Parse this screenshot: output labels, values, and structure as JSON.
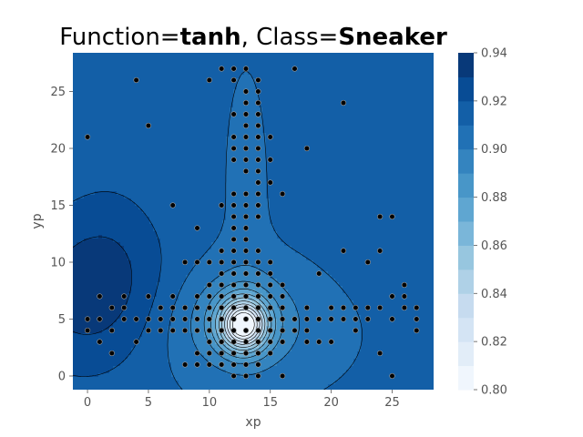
{
  "chart_data": {
    "type": "contour",
    "title_parts": [
      {
        "text": "Function=",
        "bold": false
      },
      {
        "text": "tanh",
        "bold": true
      },
      {
        "text": ", Class=",
        "bold": false
      },
      {
        "text": "Sneaker",
        "bold": true
      }
    ],
    "xlabel": "xp",
    "ylabel": "yp",
    "xlim": [
      -1.2,
      28.4
    ],
    "ylim": [
      28.4,
      -1.2
    ],
    "xticks": [
      0,
      5,
      10,
      15,
      20,
      25
    ],
    "yticks": [
      0,
      5,
      10,
      15,
      20,
      25
    ],
    "colorbar": {
      "cmap": "Blues",
      "range": [
        0.8,
        0.94
      ],
      "ticks": [
        "0.80",
        "0.82",
        "0.84",
        "0.86",
        "0.88",
        "0.90",
        "0.92",
        "0.94"
      ],
      "levels": 14
    },
    "colors": {
      "background_value_color": "#1764ab",
      "contour_line": "#000000",
      "point_fill": "#000000",
      "point_edge": "#9a9a9a"
    },
    "field": {
      "base": 0.912,
      "components": [
        {
          "type": "dip",
          "x": 12.8,
          "y": 4.5,
          "sx": 1.3,
          "sy": 1.5,
          "amp": -0.095
        },
        {
          "type": "dip",
          "x": 12.5,
          "y": 5.5,
          "sx": 3.2,
          "sy": 3.0,
          "amp": -0.018
        },
        {
          "type": "dip",
          "x": 12.5,
          "y": 3.5,
          "sx": 5.5,
          "sy": 3.5,
          "amp": -0.01
        },
        {
          "type": "dip",
          "x": 13.0,
          "y": 15.0,
          "sx": 1.5,
          "sy": 10.0,
          "amp": -0.004
        },
        {
          "type": "bump",
          "x": 0.0,
          "y": 7.0,
          "sx": 4.5,
          "sy": 5.0,
          "amp": 0.022
        },
        {
          "type": "bump",
          "x": 2.0,
          "y": 12.0,
          "sx": 3.0,
          "sy": 5.0,
          "amp": 0.006
        }
      ]
    },
    "points": [
      [
        0,
        21
      ],
      [
        0,
        4
      ],
      [
        0,
        5
      ],
      [
        1,
        3
      ],
      [
        1,
        5
      ],
      [
        1,
        7
      ],
      [
        2,
        2
      ],
      [
        2,
        4
      ],
      [
        2,
        6
      ],
      [
        3,
        5
      ],
      [
        3,
        6
      ],
      [
        3,
        7
      ],
      [
        4,
        3
      ],
      [
        4,
        5
      ],
      [
        4,
        26
      ],
      [
        5,
        4
      ],
      [
        5,
        5
      ],
      [
        5,
        7
      ],
      [
        5,
        22
      ],
      [
        6,
        4
      ],
      [
        6,
        5
      ],
      [
        6,
        6
      ],
      [
        7,
        4
      ],
      [
        7,
        5
      ],
      [
        7,
        6
      ],
      [
        7,
        7
      ],
      [
        7,
        15
      ],
      [
        8,
        1
      ],
      [
        8,
        4
      ],
      [
        8,
        5
      ],
      [
        8,
        6
      ],
      [
        8,
        10
      ],
      [
        9,
        1
      ],
      [
        9,
        2
      ],
      [
        9,
        4
      ],
      [
        9,
        5
      ],
      [
        9,
        6
      ],
      [
        9,
        7
      ],
      [
        9,
        10
      ],
      [
        9,
        13
      ],
      [
        10,
        1
      ],
      [
        10,
        2
      ],
      [
        10,
        3
      ],
      [
        10,
        4
      ],
      [
        10,
        5
      ],
      [
        10,
        6
      ],
      [
        10,
        7
      ],
      [
        10,
        8
      ],
      [
        10,
        10
      ],
      [
        10,
        26
      ],
      [
        11,
        1
      ],
      [
        11,
        2
      ],
      [
        11,
        3
      ],
      [
        11,
        4
      ],
      [
        11,
        5
      ],
      [
        11,
        6
      ],
      [
        11,
        7
      ],
      [
        11,
        8
      ],
      [
        11,
        9
      ],
      [
        11,
        10
      ],
      [
        11,
        11
      ],
      [
        11,
        15
      ],
      [
        11,
        27
      ],
      [
        12,
        0
      ],
      [
        12,
        1
      ],
      [
        12,
        2
      ],
      [
        12,
        3
      ],
      [
        12,
        4
      ],
      [
        12,
        5
      ],
      [
        12,
        6
      ],
      [
        12,
        7
      ],
      [
        12,
        8
      ],
      [
        12,
        9
      ],
      [
        12,
        10
      ],
      [
        12,
        11
      ],
      [
        12,
        12
      ],
      [
        12,
        13
      ],
      [
        12,
        14
      ],
      [
        12,
        15
      ],
      [
        12,
        16
      ],
      [
        12,
        19
      ],
      [
        12,
        20
      ],
      [
        12,
        21
      ],
      [
        12,
        23
      ],
      [
        12,
        26
      ],
      [
        12,
        27
      ],
      [
        13,
        0
      ],
      [
        13,
        1
      ],
      [
        13,
        2
      ],
      [
        13,
        3
      ],
      [
        13,
        4
      ],
      [
        13,
        5
      ],
      [
        13,
        6
      ],
      [
        13,
        7
      ],
      [
        13,
        8
      ],
      [
        13,
        9
      ],
      [
        13,
        10
      ],
      [
        13,
        11
      ],
      [
        13,
        12
      ],
      [
        13,
        13
      ],
      [
        13,
        14
      ],
      [
        13,
        15
      ],
      [
        13,
        16
      ],
      [
        13,
        18
      ],
      [
        13,
        19
      ],
      [
        13,
        20
      ],
      [
        13,
        21
      ],
      [
        13,
        22
      ],
      [
        13,
        23
      ],
      [
        13,
        24
      ],
      [
        13,
        25
      ],
      [
        13,
        27
      ],
      [
        14,
        0
      ],
      [
        14,
        1
      ],
      [
        14,
        2
      ],
      [
        14,
        3
      ],
      [
        14,
        4
      ],
      [
        14,
        5
      ],
      [
        14,
        6
      ],
      [
        14,
        7
      ],
      [
        14,
        8
      ],
      [
        14,
        9
      ],
      [
        14,
        10
      ],
      [
        14,
        11
      ],
      [
        14,
        14
      ],
      [
        14,
        15
      ],
      [
        14,
        16
      ],
      [
        14,
        17
      ],
      [
        14,
        18
      ],
      [
        14,
        19
      ],
      [
        14,
        20
      ],
      [
        14,
        21
      ],
      [
        14,
        22
      ],
      [
        14,
        23
      ],
      [
        14,
        24
      ],
      [
        14,
        25
      ],
      [
        14,
        26
      ],
      [
        15,
        2
      ],
      [
        15,
        3
      ],
      [
        15,
        4
      ],
      [
        15,
        5
      ],
      [
        15,
        6
      ],
      [
        15,
        7
      ],
      [
        15,
        8
      ],
      [
        15,
        9
      ],
      [
        15,
        10
      ],
      [
        15,
        17
      ],
      [
        15,
        19
      ],
      [
        15,
        21
      ],
      [
        16,
        0
      ],
      [
        16,
        3
      ],
      [
        16,
        4
      ],
      [
        16,
        5
      ],
      [
        16,
        6
      ],
      [
        16,
        7
      ],
      [
        16,
        8
      ],
      [
        16,
        16
      ],
      [
        17,
        4
      ],
      [
        17,
        5
      ],
      [
        17,
        27
      ],
      [
        18,
        3
      ],
      [
        18,
        4
      ],
      [
        18,
        5
      ],
      [
        18,
        6
      ],
      [
        18,
        20
      ],
      [
        19,
        3
      ],
      [
        19,
        5
      ],
      [
        19,
        9
      ],
      [
        20,
        3
      ],
      [
        20,
        5
      ],
      [
        20,
        6
      ],
      [
        21,
        5
      ],
      [
        21,
        6
      ],
      [
        21,
        11
      ],
      [
        21,
        24
      ],
      [
        22,
        4
      ],
      [
        22,
        5
      ],
      [
        22,
        6
      ],
      [
        23,
        5
      ],
      [
        23,
        6
      ],
      [
        23,
        10
      ],
      [
        24,
        2
      ],
      [
        24,
        6
      ],
      [
        24,
        11
      ],
      [
        24,
        14
      ],
      [
        25,
        0
      ],
      [
        25,
        5
      ],
      [
        25,
        7
      ],
      [
        25,
        14
      ],
      [
        26,
        6
      ],
      [
        26,
        7
      ],
      [
        26,
        8
      ],
      [
        27,
        4
      ],
      [
        27,
        5
      ],
      [
        27,
        6
      ]
    ]
  }
}
